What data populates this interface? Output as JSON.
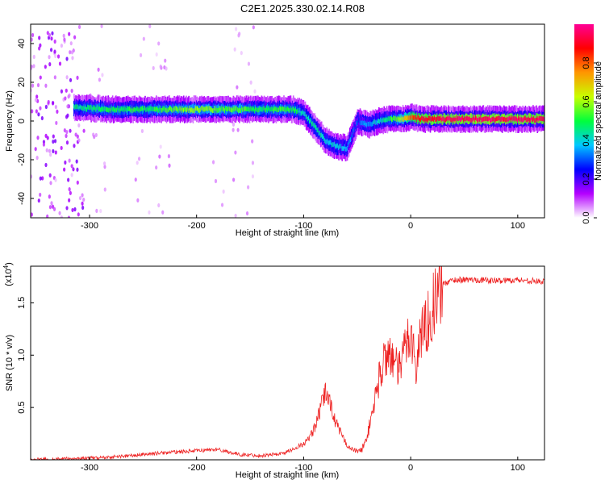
{
  "title": "C2E1.2025.330.02.14.R08",
  "chart_data": [
    {
      "type": "heatmap",
      "xlabel": "Height of straight line (km)",
      "ylabel": "Frequency (Hz)",
      "xlim": [
        -355,
        125
      ],
      "ylim": [
        -50,
        50
      ],
      "xticks": [
        "-300",
        "-200",
        "-100",
        "0",
        "100"
      ],
      "yticks": [
        "-40",
        "-20",
        "0",
        "20",
        "40"
      ],
      "colorbar": {
        "label": "Normalized spectral amplitude",
        "range": [
          0,
          1
        ],
        "ticks": [
          "0.0",
          "0.2",
          "0.4",
          "0.6",
          "0.8"
        ],
        "colors": [
          "#ffffff",
          "#b400ff",
          "#0000ff",
          "#00c8ff",
          "#00ff3c",
          "#c8ff00",
          "#ff9600",
          "#ff0000",
          "#ff0096"
        ]
      },
      "ridge": {
        "x": [
          -315,
          -280,
          -250,
          -220,
          -200,
          -180,
          -160,
          -140,
          -120,
          -110,
          -100,
          -90,
          -80,
          -70,
          -60,
          -50,
          -40,
          -30,
          -20,
          -10,
          0,
          10,
          40,
          80,
          125
        ],
        "frequency": [
          7,
          6,
          6,
          6,
          6,
          6,
          6,
          6,
          6,
          6,
          4,
          -3,
          -10,
          -13,
          -14,
          0,
          -2,
          0,
          1,
          1,
          2,
          1,
          1,
          1,
          1
        ],
        "amplitude": [
          0.45,
          0.5,
          0.5,
          0.55,
          0.6,
          0.55,
          0.55,
          0.5,
          0.55,
          0.5,
          0.4,
          0.45,
          0.4,
          0.4,
          0.35,
          0.3,
          0.35,
          0.4,
          0.5,
          0.6,
          0.8,
          0.9,
          0.95,
          0.95,
          0.95
        ]
      }
    },
    {
      "type": "line",
      "xlabel": "Height of straight line (km)",
      "ylabel": "SNR (10 * v/v)",
      "y_multiplier": "(x10",
      "y_multiplier_exp": "4",
      "xlim": [
        -355,
        125
      ],
      "ylim": [
        0,
        1.85
      ],
      "xticks": [
        "-300",
        "-200",
        "-100",
        "0",
        "100"
      ],
      "yticks": [
        "0.5",
        "1.0",
        "1.5"
      ],
      "color": "#ee2222",
      "series": [
        {
          "x": [
            -355,
            -320,
            -290,
            -260,
            -240,
            -210,
            -180,
            -160,
            -140,
            -120,
            -110,
            -100,
            -95,
            -90,
            -85,
            -80,
            -75,
            -70,
            -65,
            -60,
            -55,
            -50,
            -45,
            -40,
            -35,
            -30,
            -25,
            -20,
            -15,
            -10,
            -5,
            0,
            5,
            10,
            15,
            20,
            25,
            30,
            40,
            60,
            80,
            100,
            125
          ],
          "y": [
            0.0,
            0.01,
            0.02,
            0.04,
            0.06,
            0.08,
            0.1,
            0.05,
            0.04,
            0.06,
            0.1,
            0.15,
            0.2,
            0.3,
            0.45,
            0.65,
            0.55,
            0.35,
            0.25,
            0.15,
            0.1,
            0.08,
            0.1,
            0.25,
            0.5,
            0.75,
            0.95,
            1.05,
            0.9,
            0.85,
            1.1,
            1.25,
            0.85,
            1.25,
            1.3,
            1.45,
            1.55,
            1.68,
            1.72,
            1.72,
            1.71,
            1.72,
            1.7
          ]
        }
      ]
    }
  ]
}
